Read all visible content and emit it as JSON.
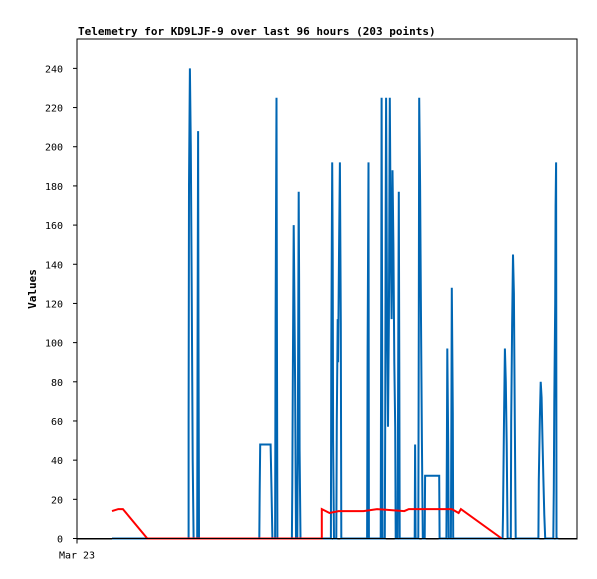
{
  "chart_data": {
    "type": "line",
    "title": "Telemetry for KD9LJF-9 over last 96 hours (203 points)",
    "xlabel": "",
    "ylabel": "Values",
    "ylim": [
      0,
      255
    ],
    "yticks": [
      0,
      20,
      40,
      60,
      80,
      100,
      120,
      140,
      160,
      180,
      200,
      220,
      240
    ],
    "xlim": [
      0,
      96
    ],
    "xticks": [
      {
        "x": 0,
        "label": "Mar 23"
      }
    ],
    "grid": false,
    "legend": "none",
    "series": [
      {
        "color": "#0066b3",
        "points": [
          [
            0,
            0
          ],
          [
            16.9,
            0
          ],
          [
            16.9,
            60
          ],
          [
            17.0,
            180
          ],
          [
            17.2,
            240
          ],
          [
            17.4,
            200
          ],
          [
            17.6,
            120
          ],
          [
            17.8,
            40
          ],
          [
            18.0,
            0
          ],
          [
            18.8,
            0
          ],
          [
            18.9,
            105
          ],
          [
            19.0,
            208
          ],
          [
            19.1,
            105
          ],
          [
            19.2,
            0
          ],
          [
            32.5,
            0
          ],
          [
            32.6,
            25
          ],
          [
            32.7,
            48
          ],
          [
            35.0,
            48
          ],
          [
            35.2,
            25
          ],
          [
            35.4,
            0
          ],
          [
            36.0,
            0
          ],
          [
            36.1,
            112
          ],
          [
            36.3,
            225
          ],
          [
            36.4,
            112
          ],
          [
            36.5,
            0
          ],
          [
            39.7,
            0
          ],
          [
            39.8,
            27
          ],
          [
            39.9,
            80
          ],
          [
            40.1,
            160
          ],
          [
            40.2,
            133
          ],
          [
            40.4,
            80
          ],
          [
            40.6,
            0
          ],
          [
            40.9,
            0
          ],
          [
            41.0,
            45
          ],
          [
            41.2,
            177
          ],
          [
            41.3,
            133
          ],
          [
            41.4,
            45
          ],
          [
            41.6,
            0
          ],
          [
            48.3,
            0
          ],
          [
            48.4,
            97
          ],
          [
            48.6,
            192
          ],
          [
            48.7,
            145
          ],
          [
            48.8,
            50
          ],
          [
            49.0,
            0
          ],
          [
            49.5,
            0
          ],
          [
            49.6,
            60
          ],
          [
            49.8,
            112
          ],
          [
            49.9,
            90
          ],
          [
            50.1,
            145
          ],
          [
            50.3,
            192
          ],
          [
            50.5,
            110
          ],
          [
            50.6,
            0
          ],
          [
            56.3,
            0
          ],
          [
            56.4,
            95
          ],
          [
            56.6,
            192
          ],
          [
            56.7,
            0
          ],
          [
            59.3,
            0
          ],
          [
            59.4,
            112
          ],
          [
            59.5,
            225
          ],
          [
            59.6,
            112
          ],
          [
            59.7,
            0
          ],
          [
            60.2,
            0
          ],
          [
            60.3,
            57
          ],
          [
            60.4,
            168
          ],
          [
            60.5,
            225
          ],
          [
            60.7,
            120
          ],
          [
            60.9,
            57
          ],
          [
            61.1,
            112
          ],
          [
            61.3,
            225
          ],
          [
            61.5,
            155
          ],
          [
            61.7,
            112
          ],
          [
            61.9,
            188
          ],
          [
            62.1,
            150
          ],
          [
            62.3,
            90
          ],
          [
            62.5,
            57
          ],
          [
            62.6,
            0
          ],
          [
            63.0,
            0
          ],
          [
            63.1,
            45
          ],
          [
            63.3,
            177
          ],
          [
            63.4,
            88
          ],
          [
            63.5,
            0
          ],
          [
            66.8,
            0
          ],
          [
            66.9,
            48
          ],
          [
            67.0,
            0
          ],
          [
            67.6,
            0
          ],
          [
            67.7,
            112
          ],
          [
            67.8,
            225
          ],
          [
            68.0,
            180
          ],
          [
            68.2,
            112
          ],
          [
            68.4,
            50
          ],
          [
            68.6,
            0
          ],
          [
            69.0,
            0
          ],
          [
            69.1,
            32
          ],
          [
            72.2,
            32
          ],
          [
            72.3,
            0
          ],
          [
            73.8,
            0
          ],
          [
            73.9,
            48
          ],
          [
            74.0,
            97
          ],
          [
            74.2,
            48
          ],
          [
            74.3,
            0
          ],
          [
            74.8,
            0
          ],
          [
            74.9,
            64
          ],
          [
            75.0,
            128
          ],
          [
            75.2,
            64
          ],
          [
            75.3,
            0
          ],
          [
            86.2,
            0
          ],
          [
            86.3,
            12
          ],
          [
            86.5,
            60
          ],
          [
            86.7,
            97
          ],
          [
            86.9,
            80
          ],
          [
            87.1,
            48
          ],
          [
            87.3,
            0
          ],
          [
            88.0,
            0
          ],
          [
            88.1,
            60
          ],
          [
            88.3,
            108
          ],
          [
            88.5,
            145
          ],
          [
            88.7,
            125
          ],
          [
            88.9,
            60
          ],
          [
            89.1,
            0
          ],
          [
            94.1,
            0
          ],
          [
            94.2,
            30
          ],
          [
            94.4,
            60
          ],
          [
            94.6,
            80
          ],
          [
            94.8,
            72
          ],
          [
            95.0,
            50
          ],
          [
            95.2,
            30
          ],
          [
            95.4,
            12
          ],
          [
            95.6,
            0
          ],
          [
            97.4,
            0
          ],
          [
            97.5,
            25
          ],
          [
            97.6,
            70
          ],
          [
            97.8,
            120
          ],
          [
            97.9,
            170
          ],
          [
            98.0,
            192
          ],
          [
            98.1,
            0
          ],
          [
            98.5,
            0
          ]
        ]
      },
      {
        "color": "#ff0000",
        "points": [
          [
            0,
            14
          ],
          [
            1.4,
            15
          ],
          [
            2.4,
            15
          ],
          [
            7.8,
            0
          ],
          [
            45.0,
            0
          ],
          [
            46.3,
            0
          ],
          [
            46.3,
            15
          ],
          [
            48.0,
            13
          ],
          [
            50.0,
            14
          ],
          [
            54.5,
            14
          ],
          [
            55.5,
            14
          ],
          [
            58.5,
            15
          ],
          [
            64.5,
            14
          ],
          [
            65.5,
            15
          ],
          [
            72.0,
            15
          ],
          [
            75.0,
            15
          ],
          [
            76.5,
            13
          ],
          [
            77.0,
            15
          ],
          [
            86.0,
            0
          ]
        ]
      }
    ]
  }
}
